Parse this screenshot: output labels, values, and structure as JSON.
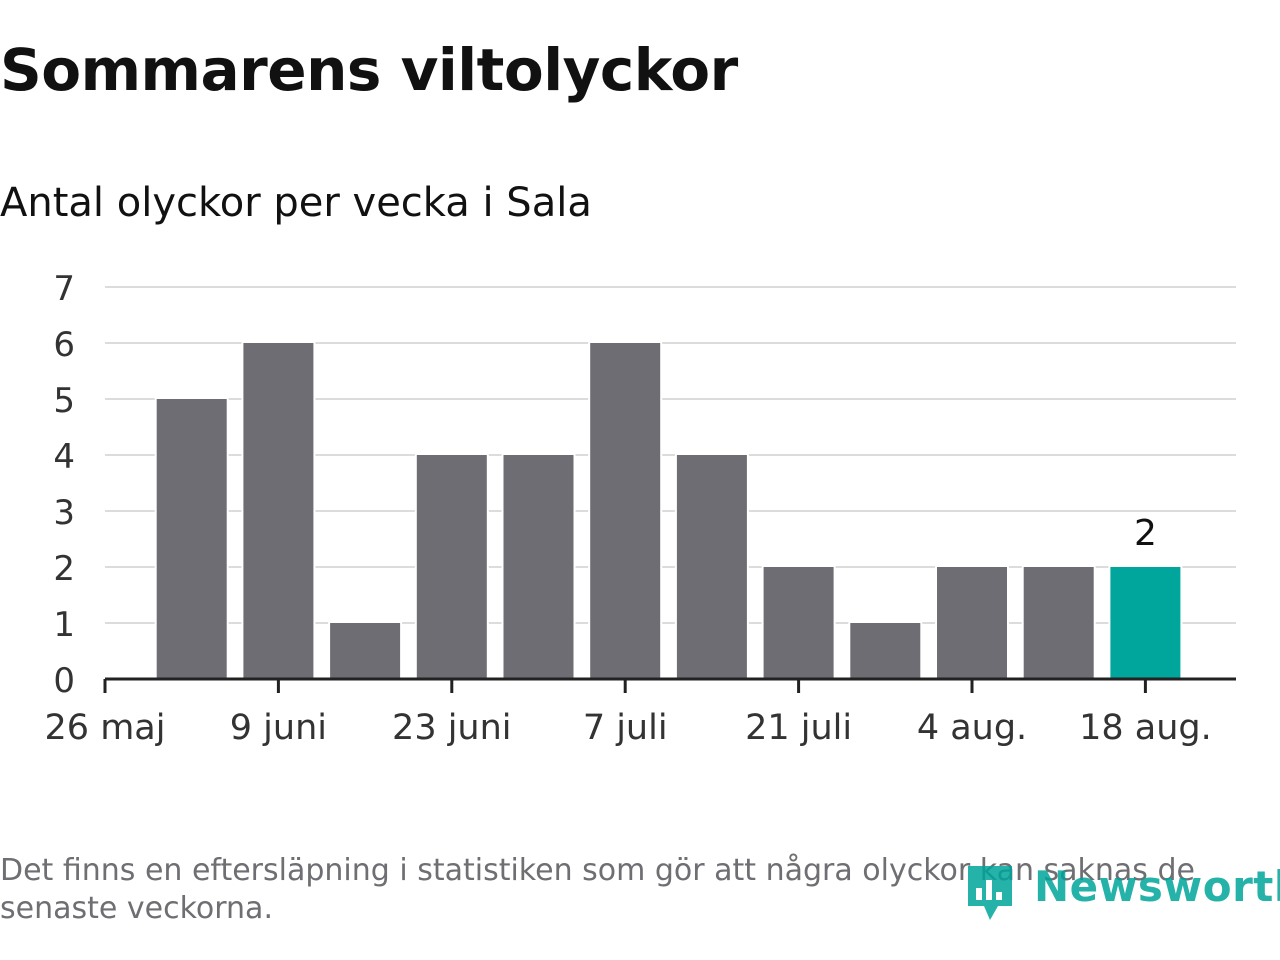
{
  "header": {
    "title": "Sommarens viltolyckor",
    "subtitle": "Antal olyckor per vecka i Sala"
  },
  "chart_data": {
    "type": "bar",
    "categories": [
      "26 maj",
      "2 juni",
      "9 juni",
      "16 juni",
      "23 juni",
      "30 juni",
      "7 juli",
      "14 juli",
      "21 juli",
      "28 juli",
      "4 aug.",
      "11 aug.",
      "18 aug."
    ],
    "values": [
      0,
      5,
      6,
      1,
      4,
      4,
      6,
      4,
      2,
      1,
      2,
      2,
      2
    ],
    "x_tick_labels": [
      "26 maj",
      "9 juni",
      "23 juni",
      "7 juli",
      "21 juli",
      "4 aug.",
      "18 aug."
    ],
    "y_ticks": [
      0,
      1,
      2,
      3,
      4,
      5,
      6,
      7
    ],
    "ylim": [
      0,
      7
    ],
    "highlight_index": 12,
    "highlight_label": "2",
    "grid": true,
    "bar_color": "#6e6d73",
    "highlight_color": "#00a59b"
  },
  "footer": {
    "note": "Det finns en eftersläpning i statistiken som gör att några olyckor kan saknas de senaste veckorna.",
    "brand": "Newsworthy"
  }
}
